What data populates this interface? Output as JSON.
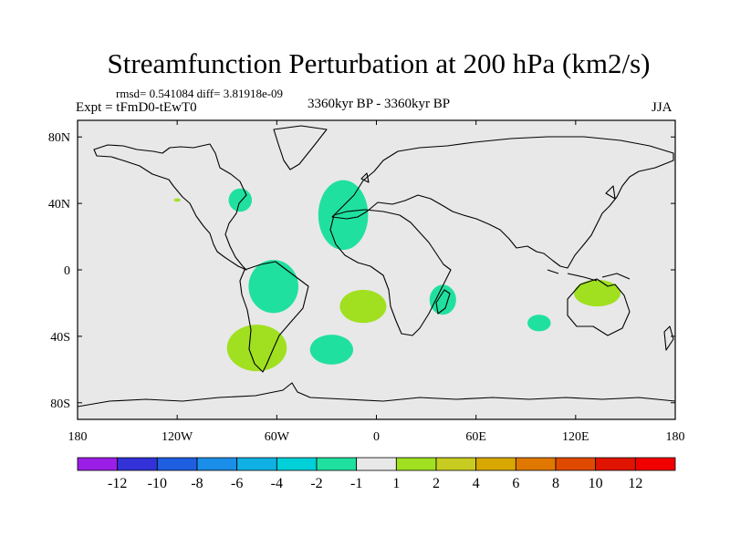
{
  "header": {
    "title": "Streamfunction Perturbation at 200 hPa (km2/s)",
    "stats": "rmsd= 0.541084 diff= 3.81918e-09",
    "experiment": "Expt = tFmD0-tEwT0",
    "period": "3360kyr BP - 3360kyr BP",
    "season": "JJA"
  },
  "chart_data": {
    "type": "heatmap",
    "title": "Streamfunction Perturbation at 200 hPa (km2/s)",
    "projection": "cylindrical equidistant",
    "xlim": [
      -180,
      180
    ],
    "ylim": [
      -90,
      90
    ],
    "x_ticks": [
      {
        "value": -180,
        "label": "180"
      },
      {
        "value": -120,
        "label": "120W"
      },
      {
        "value": -60,
        "label": "60W"
      },
      {
        "value": 0,
        "label": "0"
      },
      {
        "value": 60,
        "label": "60E"
      },
      {
        "value": 120,
        "label": "120E"
      },
      {
        "value": 180,
        "label": "180"
      }
    ],
    "y_ticks": [
      {
        "value": 80,
        "label": "80N"
      },
      {
        "value": 40,
        "label": "40N"
      },
      {
        "value": 0,
        "label": "0"
      },
      {
        "value": -40,
        "label": "40S"
      },
      {
        "value": -80,
        "label": "80S"
      }
    ],
    "background_color": "#e8e8e8",
    "colorbar": {
      "levels": [
        "-12",
        "-10",
        "-8",
        "-6",
        "-4",
        "-2",
        "-1",
        "1",
        "2",
        "4",
        "6",
        "8",
        "10",
        "12"
      ],
      "colors": [
        "#9b1de8",
        "#3232d8",
        "#1e5ee0",
        "#1a8ee8",
        "#10b0e4",
        "#00d0d8",
        "#20e0a0",
        "#e8e8e8",
        "#a0e020",
        "#c8cc20",
        "#d8a800",
        "#e07800",
        "#e04a00",
        "#e01400",
        "#f00000"
      ]
    },
    "anomalies": [
      {
        "region": "Great Lakes",
        "lon": -82,
        "lat": 42,
        "rx": 7,
        "ry": 7,
        "color_index": 6
      },
      {
        "region": "Western North America",
        "lon": -120,
        "lat": 42,
        "rx": 2,
        "ry": 1,
        "color_index": 8
      },
      {
        "region": "North Atlantic",
        "lon": -20,
        "lat": 33,
        "rx": 15,
        "ry": 21,
        "color_index": 6
      },
      {
        "region": "Tropical South America",
        "lon": -62,
        "lat": -10,
        "rx": 15,
        "ry": 16,
        "color_index": 6
      },
      {
        "region": "Southern South America",
        "lon": -72,
        "lat": -47,
        "rx": 18,
        "ry": 14,
        "color_index": 8
      },
      {
        "region": "South Atlantic tropics",
        "lon": -8,
        "lat": -22,
        "rx": 14,
        "ry": 10,
        "color_index": 8
      },
      {
        "region": "South Atlantic",
        "lon": -27,
        "lat": -48,
        "rx": 13,
        "ry": 9,
        "color_index": 6
      },
      {
        "region": "Madagascar",
        "lon": 40,
        "lat": -18,
        "rx": 8,
        "ry": 9,
        "color_index": 6
      },
      {
        "region": "Southern Indian Ocean",
        "lon": 98,
        "lat": -32,
        "rx": 7,
        "ry": 5,
        "color_index": 6
      },
      {
        "region": "Northern Australia",
        "lon": 133,
        "lat": -14,
        "rx": 14,
        "ry": 8,
        "color_index": 8
      }
    ]
  }
}
